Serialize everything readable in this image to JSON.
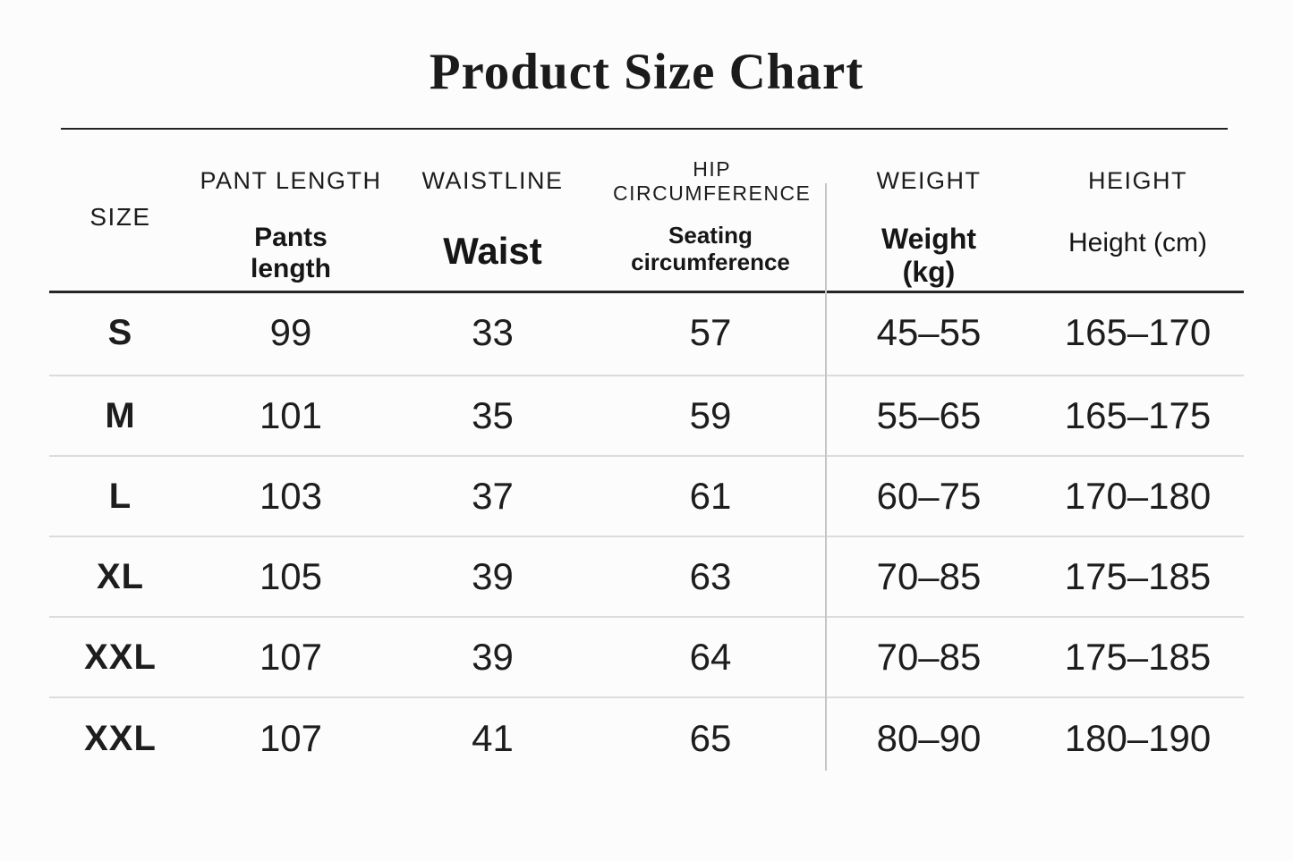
{
  "title": "Product Size Chart",
  "colors": {
    "background": "#fcfcfc",
    "text": "#1a1a1a",
    "rule_dark": "#242424",
    "row_divider": "#dcdcdc",
    "column_divider": "#c6c6c6"
  },
  "chart_data": {
    "type": "table",
    "title": "Product Size Chart",
    "header": {
      "primary": [
        "SIZE",
        "PANT LENGTH",
        "WAISTLINE",
        "HIP CIRCUMFERENCE",
        "WEIGHT",
        "HEIGHT"
      ],
      "secondary": [
        "",
        "Pants length",
        "Waist",
        "Seating circumference",
        "Weight (kg)",
        "Height (cm)"
      ]
    },
    "rows": [
      [
        "S",
        "99",
        "33",
        "57",
        "45–55",
        "165–170"
      ],
      [
        "M",
        "101",
        "35",
        "59",
        "55–65",
        "165–175"
      ],
      [
        "L",
        "103",
        "37",
        "61",
        "60–75",
        "170–180"
      ],
      [
        "XL",
        "105",
        "39",
        "63",
        "70–85",
        "175–185"
      ],
      [
        "XXL",
        "107",
        "39",
        "64",
        "70–85",
        "175–185"
      ],
      [
        "XXL",
        "107",
        "41",
        "65",
        "80–90",
        "180–190"
      ]
    ]
  }
}
